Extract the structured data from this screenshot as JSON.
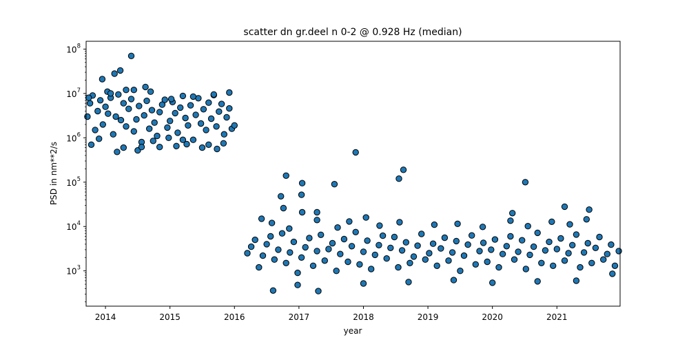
{
  "chart_data": {
    "type": "scatter",
    "title": "scatter dn gr.deel n 0-2 @ 0.928 Hz (median)",
    "xlabel": "year",
    "ylabel": "PSD in nm**2/s",
    "y_scale": "log",
    "xlim": [
      2013.7,
      2021.98
    ],
    "ylim": [
      160,
      150000000
    ],
    "x_ticks": [
      {
        "value": 2014,
        "label": "2014"
      },
      {
        "value": 2015,
        "label": "2015"
      },
      {
        "value": 2016,
        "label": "2016"
      },
      {
        "value": 2017,
        "label": "2017"
      },
      {
        "value": 2018,
        "label": "2018"
      },
      {
        "value": 2019,
        "label": "2019"
      },
      {
        "value": 2020,
        "label": "2020"
      },
      {
        "value": 2021,
        "label": "2021"
      }
    ],
    "y_ticks": [
      {
        "value": 1000,
        "base": "10",
        "exp": "3"
      },
      {
        "value": 10000,
        "base": "10",
        "exp": "4"
      },
      {
        "value": 100000,
        "base": "10",
        "exp": "5"
      },
      {
        "value": 1000000,
        "base": "10",
        "exp": "6"
      },
      {
        "value": 10000000,
        "base": "10",
        "exp": "7"
      },
      {
        "value": 100000000,
        "base": "10",
        "exp": "8"
      }
    ],
    "marker_color": "#1f77b4",
    "marker_edge": "#000000",
    "grid": false,
    "legend": "none",
    "series": [
      {
        "x": [
          2013.72,
          2013.76,
          2013.8,
          2013.84,
          2013.88,
          2013.92,
          2013.96,
          2014.0,
          2014.04,
          2014.08,
          2014.12,
          2014.16,
          2014.2,
          2014.24,
          2014.28,
          2014.32,
          2014.36,
          2014.4,
          2014.44,
          2014.48,
          2014.52,
          2014.56,
          2014.6,
          2014.64,
          2014.68,
          2014.72,
          2014.76,
          2014.8,
          2014.84,
          2014.88,
          2014.92,
          2014.96,
          2015.0,
          2015.04,
          2015.08,
          2015.12,
          2015.16,
          2015.2,
          2015.24,
          2015.28,
          2015.32,
          2015.36,
          2015.4,
          2015.44,
          2015.48,
          2015.52,
          2015.56,
          2015.6,
          2015.64,
          2015.68,
          2015.72,
          2015.76,
          2015.8,
          2015.84,
          2015.88,
          2015.92,
          2015.96,
          2016.0,
          2014.14,
          2014.23,
          2014.4,
          2014.62,
          2014.03,
          2013.95,
          2014.32,
          2015.1,
          2015.5,
          2014.5,
          2013.78,
          2014.74,
          2015.26,
          2015.73,
          2013.9,
          2014.28,
          2014.56,
          2014.98,
          2015.2,
          2015.6,
          2015.83,
          2013.74,
          2014.08,
          2014.44,
          2014.7,
          2015.02,
          2015.36,
          2015.68,
          2015.92,
          2014.18,
          2014.84
        ],
        "y": [
          3000000,
          6000000,
          9000000,
          1500000,
          4000000,
          7000000,
          2000000,
          5000000,
          3500000,
          8000000,
          1200000,
          3000000,
          9500000,
          2500000,
          6000000,
          1800000,
          4500000,
          7500000,
          1400000,
          2600000,
          5200000,
          800000,
          3200000,
          6800000,
          1600000,
          4200000,
          2200000,
          1100000,
          3800000,
          5600000,
          7200000,
          1700000,
          2400000,
          6400000,
          3600000,
          1300000,
          4800000,
          8800000,
          2800000,
          1900000,
          5400000,
          900000,
          3300000,
          7800000,
          2100000,
          4400000,
          1500000,
          6200000,
          2700000,
          9200000,
          1800000,
          3900000,
          5800000,
          1200000,
          2900000,
          4600000,
          1600000,
          1900000,
          28000000,
          33000000,
          70000000,
          14000000,
          11000000,
          21000000,
          12000000,
          650000,
          600000,
          520000,
          700000,
          850000,
          720000,
          560000,
          950000,
          600000,
          620000,
          1000000,
          900000,
          700000,
          750000,
          8000000,
          10000000,
          12000000,
          11000000,
          7500000,
          8500000,
          9500000,
          10500000,
          480000,
          620000
        ]
      },
      {
        "x": [
          2016.2,
          2016.26,
          2016.32,
          2016.38,
          2016.44,
          2016.5,
          2016.56,
          2016.62,
          2016.68,
          2016.74,
          2016.8,
          2016.86,
          2016.92,
          2016.98,
          2017.04,
          2017.1,
          2017.16,
          2017.22,
          2017.28,
          2017.34,
          2017.4,
          2017.46,
          2017.52,
          2017.58,
          2017.64,
          2017.7,
          2017.76,
          2017.82,
          2017.88,
          2017.94,
          2018.0,
          2018.06,
          2018.12,
          2018.18,
          2018.24,
          2018.3,
          2018.36,
          2018.42,
          2018.48,
          2018.54,
          2018.6,
          2018.66,
          2018.72,
          2018.78,
          2018.84,
          2018.9,
          2018.96,
          2019.02,
          2019.08,
          2019.14,
          2019.2,
          2019.26,
          2019.32,
          2019.38,
          2019.44,
          2019.5,
          2019.56,
          2019.62,
          2019.68,
          2019.74,
          2019.8,
          2019.86,
          2019.92,
          2019.98,
          2020.04,
          2020.1,
          2020.16,
          2020.22,
          2020.28,
          2020.34,
          2020.4,
          2020.46,
          2020.52,
          2020.58,
          2020.64,
          2020.7,
          2020.76,
          2020.82,
          2020.88,
          2020.94,
          2021.0,
          2021.06,
          2021.12,
          2021.18,
          2021.24,
          2021.3,
          2021.36,
          2021.42,
          2021.48,
          2021.54,
          2021.6,
          2021.66,
          2021.72,
          2021.78,
          2021.84,
          2021.9,
          2021.96,
          2016.72,
          2016.8,
          2016.76,
          2017.05,
          2017.04,
          2017.55,
          2017.88,
          2018.55,
          2018.62,
          2020.51,
          2017.28,
          2017.05,
          2016.42,
          2018.04,
          2020.31,
          2021.12,
          2021.5,
          2016.6,
          2016.98,
          2017.3,
          2018.0,
          2018.7,
          2019.4,
          2020.0,
          2020.7,
          2021.3,
          2021.86,
          2016.58,
          2017.28,
          2017.78,
          2018.56,
          2019.46,
          2020.28,
          2020.92,
          2021.46,
          2016.85,
          2017.6,
          2018.25,
          2019.1,
          2019.85,
          2020.55,
          2021.2
        ],
        "y": [
          2500,
          3500,
          5000,
          1200,
          2200,
          4000,
          6000,
          1800,
          3000,
          7000,
          1500,
          2600,
          4500,
          900,
          2000,
          3400,
          5500,
          1300,
          2800,
          6500,
          1700,
          3100,
          4200,
          1000,
          2400,
          5200,
          1600,
          3600,
          7500,
          1400,
          2700,
          4800,
          1100,
          2300,
          3800,
          6200,
          1900,
          3300,
          5800,
          1200,
          2900,
          4400,
          1500,
          2100,
          3700,
          6800,
          1800,
          2500,
          4100,
          1300,
          3200,
          5600,
          1700,
          2600,
          4700,
          1000,
          2200,
          3900,
          6300,
          1400,
          2800,
          4300,
          1600,
          3000,
          5100,
          1200,
          2400,
          3600,
          6000,
          1800,
          2700,
          4900,
          1100,
          2300,
          3500,
          7200,
          1500,
          2900,
          4500,
          1300,
          3100,
          5400,
          1700,
          2500,
          3800,
          6600,
          1200,
          2600,
          4200,
          1500,
          3300,
          5800,
          1800,
          2400,
          3900,
          1300,
          2800,
          48000,
          140000,
          26000,
          95000,
          52000,
          90000,
          470000,
          120000,
          190000,
          100000,
          21000,
          21000,
          15000,
          16000,
          20000,
          28000,
          24000,
          360,
          480,
          350,
          520,
          560,
          620,
          540,
          580,
          600,
          860,
          12000,
          14000,
          13000,
          12500,
          11500,
          13500,
          12800,
          14500,
          9000,
          9500,
          10500,
          11000,
          9800,
          10200,
          11200
        ]
      }
    ]
  }
}
